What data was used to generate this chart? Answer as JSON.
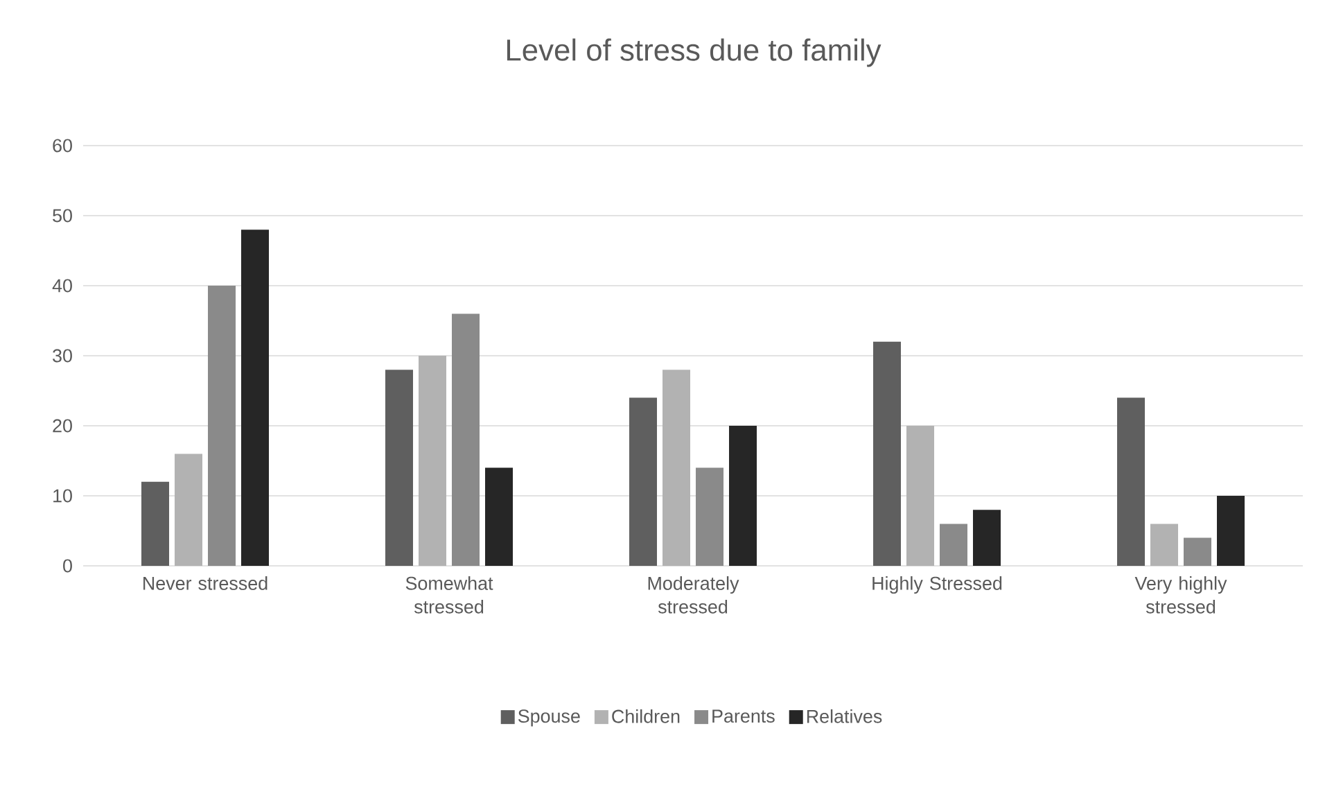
{
  "chart_data": {
    "type": "bar",
    "title": "Level of stress due to family",
    "categories": [
      "Never stressed",
      "Somewhat stressed",
      "Moderately stressed",
      "Highly Stressed",
      "Very highly stressed"
    ],
    "series": [
      {
        "name": "Spouse",
        "color": "#5f5f5f",
        "values": [
          12,
          28,
          24,
          32,
          24
        ]
      },
      {
        "name": "Children",
        "color": "#b2b2b2",
        "values": [
          16,
          30,
          28,
          20,
          6
        ]
      },
      {
        "name": "Parents",
        "color": "#8a8a8a",
        "values": [
          40,
          36,
          14,
          6,
          4
        ]
      },
      {
        "name": "Relatives",
        "color": "#262626",
        "values": [
          48,
          14,
          20,
          8,
          10
        ]
      }
    ],
    "ylim": [
      0,
      60
    ],
    "yticks": [
      0,
      10,
      20,
      30,
      40,
      50,
      60
    ],
    "grid": "y",
    "legend": "bottom"
  }
}
